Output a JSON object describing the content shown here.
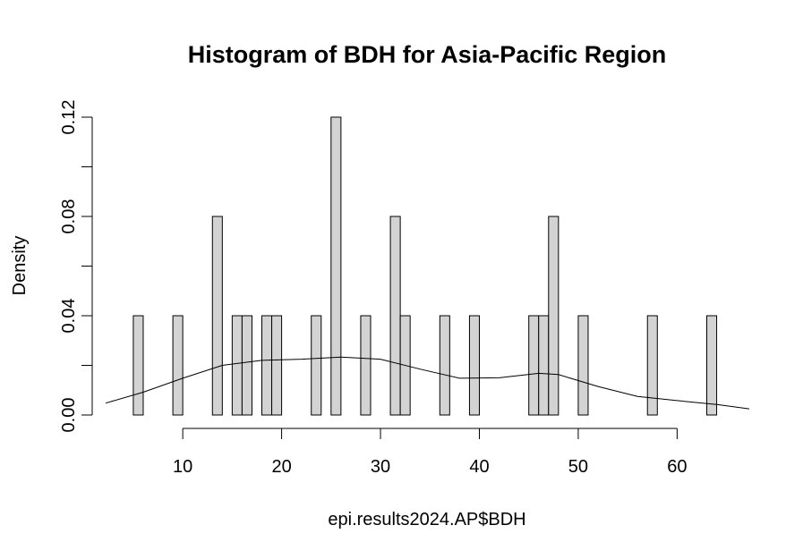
{
  "chart_data": {
    "type": "bar",
    "title": "Histogram of BDH for Asia-Pacific Region",
    "xlabel": "epi.results2024.AP$BDH",
    "ylabel": "Density",
    "x_plot_range": [
      2.2,
      67.3
    ],
    "ylim": [
      0,
      0.12
    ],
    "x_ticks": [
      10,
      20,
      30,
      40,
      50,
      60
    ],
    "x_tick_labels": [
      "10",
      "20",
      "30",
      "40",
      "50",
      "60"
    ],
    "y_ticks": [
      0,
      0.02,
      0.04,
      0.06,
      0.08,
      0.1,
      0.12
    ],
    "y_tick_labels": [
      "0.00",
      "",
      "0.04",
      "",
      "0.08",
      "",
      "0.12"
    ],
    "bin_width": 1,
    "bins": [
      {
        "start": 5,
        "end": 6,
        "density": 0.04
      },
      {
        "start": 9,
        "end": 10,
        "density": 0.04
      },
      {
        "start": 13,
        "end": 14,
        "density": 0.08
      },
      {
        "start": 15,
        "end": 16,
        "density": 0.04
      },
      {
        "start": 16,
        "end": 17,
        "density": 0.04
      },
      {
        "start": 18,
        "end": 19,
        "density": 0.04
      },
      {
        "start": 19,
        "end": 20,
        "density": 0.04
      },
      {
        "start": 23,
        "end": 24,
        "density": 0.04
      },
      {
        "start": 25,
        "end": 26,
        "density": 0.12
      },
      {
        "start": 28,
        "end": 29,
        "density": 0.04
      },
      {
        "start": 31,
        "end": 32,
        "density": 0.08
      },
      {
        "start": 32,
        "end": 33,
        "density": 0.04
      },
      {
        "start": 36,
        "end": 37,
        "density": 0.04
      },
      {
        "start": 39,
        "end": 40,
        "density": 0.04
      },
      {
        "start": 45,
        "end": 46,
        "density": 0.04
      },
      {
        "start": 46,
        "end": 47,
        "density": 0.04
      },
      {
        "start": 47,
        "end": 48,
        "density": 0.08
      },
      {
        "start": 50,
        "end": 51,
        "density": 0.04
      },
      {
        "start": 57,
        "end": 58,
        "density": 0.04
      },
      {
        "start": 63,
        "end": 64,
        "density": 0.04
      }
    ],
    "density_curve": {
      "x": [
        2.2,
        6,
        10,
        14,
        18,
        22,
        26,
        30,
        34,
        38,
        42,
        46,
        48,
        52,
        56,
        60,
        64,
        67.3
      ],
      "y": [
        0.0048,
        0.0092,
        0.0148,
        0.02,
        0.022,
        0.0225,
        0.0233,
        0.0225,
        0.0185,
        0.0148,
        0.015,
        0.0168,
        0.0163,
        0.0115,
        0.0075,
        0.0058,
        0.0042,
        0.0025
      ]
    }
  }
}
